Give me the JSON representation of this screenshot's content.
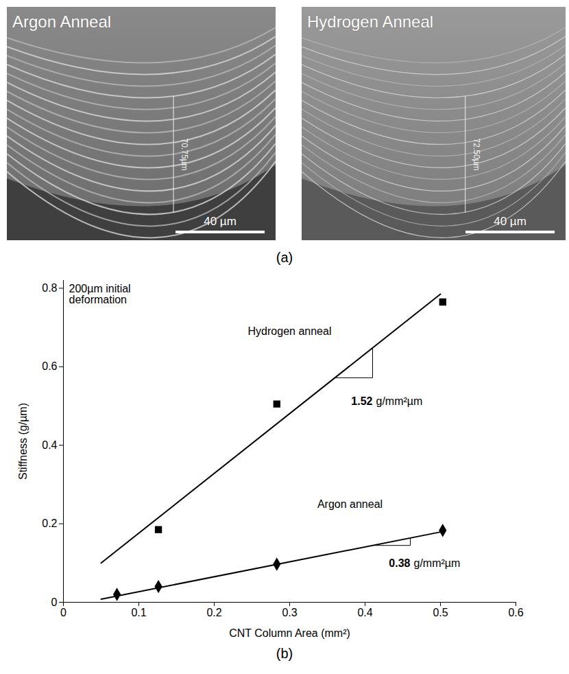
{
  "panel_a": {
    "label": "(a)",
    "images": [
      {
        "title": "Argon Anneal",
        "measurement": "70.75µm",
        "scale_bar": "40 µm"
      },
      {
        "title": "Hydrogen Anneal",
        "measurement": "72.50µm",
        "scale_bar": "40 µm"
      }
    ]
  },
  "chart_data": {
    "type": "scatter",
    "panel_label": "(b)",
    "annotation": "200µm initial deformation",
    "xlabel": "CNT Column Area (mm²)",
    "ylabel": "Stiffness (g/µm)",
    "xlim": [
      0,
      0.6
    ],
    "xticks": [
      0,
      0.1,
      0.2,
      0.3,
      0.4,
      0.5,
      0.6
    ],
    "ylim": [
      0,
      0.82
    ],
    "yticks": [
      0,
      0.2,
      0.4,
      0.6,
      0.8
    ],
    "grid": false,
    "series": [
      {
        "name": "Hydrogen anneal",
        "color": "#000000",
        "marker": "square",
        "x": [
          0.126,
          0.283,
          0.503
        ],
        "values": [
          0.185,
          0.505,
          0.765
        ],
        "fit": {
          "x": [
            0.05,
            0.5
          ],
          "values": [
            0.1,
            0.785
          ]
        },
        "slope": 1.52,
        "slope_unit": "g/mm²µm"
      },
      {
        "name": "Argon anneal",
        "color": "#000000",
        "marker": "diamond",
        "x": [
          0.071,
          0.126,
          0.283,
          0.503
        ],
        "values": [
          0.02,
          0.04,
          0.097,
          0.183
        ],
        "fit": {
          "x": [
            0.05,
            0.5
          ],
          "values": [
            0.008,
            0.179
          ]
        },
        "slope": 0.38,
        "slope_unit": "g/mm²µm"
      }
    ]
  }
}
